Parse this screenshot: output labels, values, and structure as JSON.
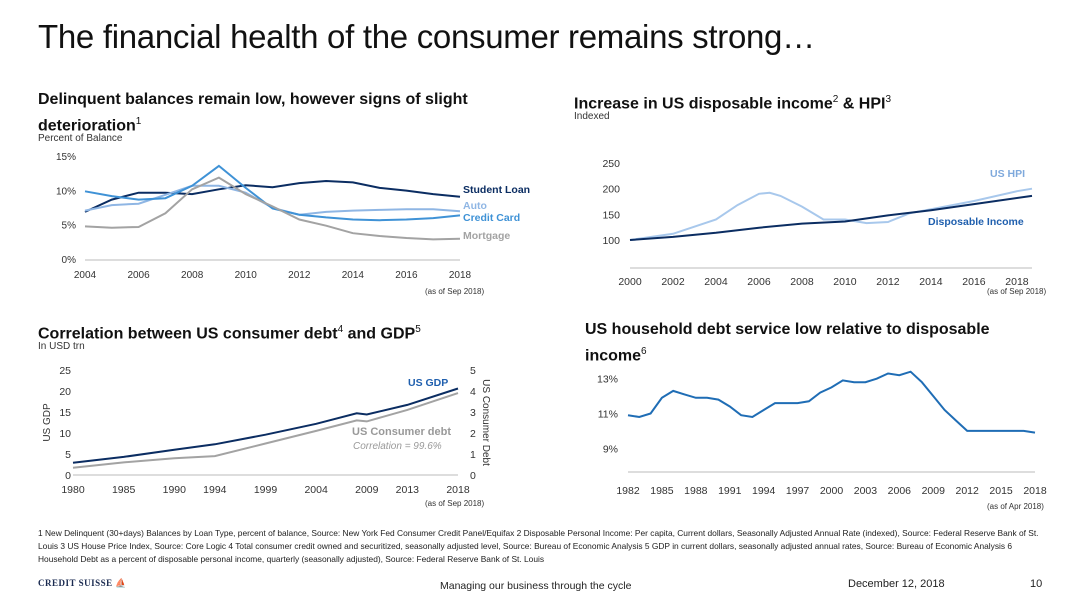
{
  "page": {
    "title": "The financial health of the consumer remains strong…",
    "footer": {
      "logo": "CREDIT SUISSE",
      "center": "Managing our business through the cycle",
      "date": "December 12, 2018",
      "page": "10"
    },
    "footnotes": "1 New Delinquent (30+days) Balances by Loan Type, percent of balance, Source: New York Fed Consumer Credit Panel/Equifax   2 Disposable Personal Income: Per capita, Current dollars, Seasonally Adjusted Annual Rate (indexed), Source: Federal Reserve Bank of St. Louis   3 US House Price Index, Source: Core Logic   4 Total consumer credit owned and securitized, seasonally adjusted level, Source: Bureau of Economic Analysis   5 GDP in current dollars, seasonally adjusted annual rates, Source: Bureau of Economic Analysis   6 Household Debt as a percent of disposable personal income, quarterly (seasonally adjusted), Source: Federal Reserve Bank of St. Louis"
  },
  "panels": [
    {
      "title": "Delinquent balances remain low, however signs of slight deterioration",
      "sup": "1",
      "subtitle": "Percent of Balance",
      "note": "(as of Sep 2018)"
    },
    {
      "title_a": "Increase in US disposable income",
      "sup_a": "2",
      "title_b": " & HPI",
      "sup_b": "3",
      "subtitle": "Indexed",
      "note": "(as of Sep 2018)"
    },
    {
      "title_a": "Correlation between US consumer debt",
      "sup_a": "4",
      "title_b": " and GDP",
      "sup_b": "5",
      "subtitle": "In USD trn",
      "note": "(as of Sep 2018)"
    },
    {
      "title": "US household debt service low relative to disposable income",
      "sup": "6",
      "subtitle": "",
      "note": "(as of Apr 2018)"
    }
  ],
  "chart_data": [
    {
      "type": "line",
      "x_ticks": [
        "2004",
        "2006",
        "2008",
        "2010",
        "2012",
        "2014",
        "2016",
        "2018"
      ],
      "y_ticks": [
        "0%",
        "5%",
        "10%",
        "15%"
      ],
      "ylim": [
        0,
        15
      ],
      "xlim": [
        2004,
        2018
      ],
      "series": [
        {
          "name": "Student Loan",
          "color": "#0b2d62",
          "x": [
            2004,
            2005,
            2006,
            2007,
            2008,
            2009,
            2010,
            2011,
            2012,
            2013,
            2014,
            2015,
            2016,
            2017,
            2018
          ],
          "values": [
            7.0,
            8.8,
            9.8,
            9.8,
            9.6,
            10.3,
            10.9,
            10.6,
            11.2,
            11.5,
            11.3,
            10.5,
            10.1,
            9.6,
            9.2
          ]
        },
        {
          "name": "Auto",
          "color": "#8fb6e4",
          "x": [
            2004,
            2005,
            2006,
            2007,
            2008,
            2009,
            2010,
            2011,
            2012,
            2013,
            2014,
            2015,
            2016,
            2017,
            2018
          ],
          "values": [
            7.2,
            8.0,
            8.2,
            9.5,
            10.8,
            10.8,
            9.8,
            7.6,
            6.6,
            7.0,
            7.2,
            7.3,
            7.4,
            7.4,
            7.1
          ]
        },
        {
          "name": "Credit Card",
          "color": "#3f92d6",
          "x": [
            2004,
            2005,
            2006,
            2007,
            2008,
            2009,
            2010,
            2011,
            2012,
            2013,
            2014,
            2015,
            2016,
            2017,
            2018
          ],
          "values": [
            10.0,
            9.3,
            8.8,
            9.0,
            10.8,
            13.7,
            10.5,
            7.5,
            6.6,
            6.2,
            5.9,
            5.8,
            5.9,
            6.1,
            6.5
          ]
        },
        {
          "name": "Mortgage",
          "color": "#a3a3a3",
          "x": [
            2004,
            2005,
            2006,
            2007,
            2008,
            2009,
            2010,
            2011,
            2012,
            2013,
            2014,
            2015,
            2016,
            2017,
            2018
          ],
          "values": [
            4.9,
            4.7,
            4.8,
            6.8,
            10.3,
            12.0,
            9.6,
            7.8,
            5.9,
            5.0,
            3.9,
            3.5,
            3.2,
            3.0,
            3.1
          ]
        }
      ]
    },
    {
      "type": "line",
      "x_ticks": [
        "2000",
        "2002",
        "2004",
        "2006",
        "2008",
        "2010",
        "2012",
        "2014",
        "2016",
        "2018"
      ],
      "y_ticks": [
        "100",
        "150",
        "200",
        "250"
      ],
      "ylim": [
        100,
        250
      ],
      "xlim": [
        2000,
        2018.7
      ],
      "series": [
        {
          "name": "Disposable Income",
          "color": "#0b2d62",
          "x": [
            2000,
            2002,
            2004,
            2006,
            2008,
            2010,
            2012,
            2014,
            2016,
            2018.7
          ],
          "values": [
            100,
            106,
            114,
            124,
            132,
            136,
            148,
            158,
            170,
            186
          ]
        },
        {
          "name": "US HPI",
          "color": "#a8c8ec",
          "x": [
            2000,
            2002,
            2004,
            2005,
            2006,
            2006.5,
            2007,
            2008,
            2009,
            2010,
            2011,
            2012,
            2013,
            2014,
            2016,
            2018,
            2018.7
          ],
          "values": [
            100,
            112,
            140,
            168,
            190,
            192,
            186,
            165,
            140,
            140,
            133,
            135,
            152,
            160,
            176,
            195,
            200
          ]
        }
      ]
    },
    {
      "type": "line",
      "x_ticks": [
        "1980",
        "1985",
        "1990",
        "1994",
        "1999",
        "2004",
        "2009",
        "2013",
        "2018"
      ],
      "y_ticks": [
        "0",
        "5",
        "10",
        "15",
        "20",
        "25"
      ],
      "y2_ticks": [
        "0",
        "1",
        "2",
        "3",
        "4",
        "5"
      ],
      "ylabel": "US GDP",
      "y2label": "US Consumer Debt",
      "ylim": [
        0,
        25
      ],
      "y2lim": [
        0,
        5
      ],
      "xlim": [
        1980,
        2018
      ],
      "annotation": "Correlation = 99.6%",
      "series": [
        {
          "name": "US GDP",
          "axis": "left",
          "color": "#0b2d62",
          "x": [
            1980,
            1985,
            1990,
            1994,
            1999,
            2004,
            2008,
            2009,
            2013,
            2018
          ],
          "values": [
            2.9,
            4.3,
            6.0,
            7.3,
            9.6,
            12.2,
            14.7,
            14.4,
            16.7,
            20.6
          ]
        },
        {
          "name": "US Consumer debt",
          "axis": "right",
          "color": "#a3a3a3",
          "x": [
            1980,
            1985,
            1990,
            1994,
            1999,
            2004,
            2008,
            2009,
            2013,
            2018
          ],
          "values": [
            0.35,
            0.6,
            0.8,
            0.9,
            1.5,
            2.1,
            2.6,
            2.55,
            3.1,
            3.9
          ]
        }
      ]
    },
    {
      "type": "line",
      "x_ticks": [
        "1982",
        "1985",
        "1988",
        "1991",
        "1994",
        "1997",
        "2000",
        "2003",
        "2006",
        "2009",
        "2012",
        "2015",
        "2018"
      ],
      "y_ticks": [
        "9%",
        "11%",
        "13%"
      ],
      "ylim": [
        8.5,
        13.5
      ],
      "xlim": [
        1982,
        2018
      ],
      "series": [
        {
          "name": "",
          "color": "#1f6db5",
          "x": [
            1982,
            1983,
            1984,
            1985,
            1986,
            1987,
            1988,
            1989,
            1990,
            1991,
            1992,
            1993,
            1994,
            1995,
            1996,
            1997,
            1998,
            1999,
            2000,
            2001,
            2002,
            2003,
            2004,
            2005,
            2006,
            2007,
            2008,
            2009,
            2010,
            2011,
            2012,
            2013,
            2014,
            2015,
            2016,
            2017,
            2018
          ],
          "values": [
            10.9,
            10.8,
            11.0,
            11.9,
            12.3,
            12.1,
            11.9,
            11.9,
            11.8,
            11.4,
            10.9,
            10.8,
            11.2,
            11.6,
            11.6,
            11.6,
            11.7,
            12.2,
            12.5,
            12.9,
            12.8,
            12.8,
            13.0,
            13.3,
            13.2,
            13.4,
            12.8,
            12.0,
            11.2,
            10.6,
            10.0,
            10.0,
            10.0,
            10.0,
            10.0,
            10.0,
            9.9
          ]
        }
      ]
    }
  ]
}
